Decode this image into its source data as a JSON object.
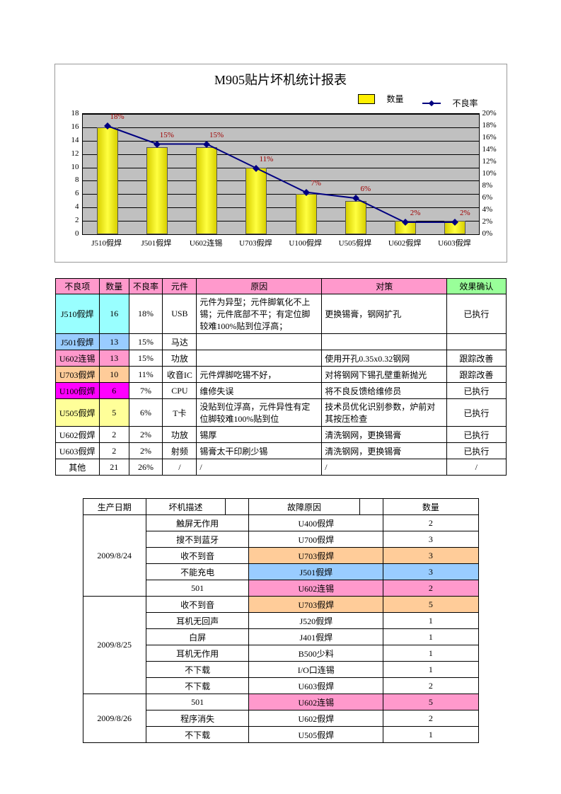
{
  "chart": {
    "title": "M905贴片坏机统计报表",
    "legend_bar": "数量",
    "legend_line": "不良率",
    "left_max": 18,
    "left_step": 2,
    "right_max": 20,
    "right_step": 2,
    "plot_bg": "#c0c0c0",
    "bar_color": "#fff000",
    "line_color": "#000080",
    "label_color": "#a00000",
    "categories": [
      "J510假焊",
      "J501假焊",
      "U602连锡",
      "U703假焊",
      "U100假焊",
      "U505假焊",
      "U602假焊",
      "U603假焊"
    ],
    "bar_values": [
      16,
      13,
      13,
      10,
      6,
      5,
      2,
      2
    ],
    "rate_values": [
      18,
      15,
      15,
      11,
      7,
      6,
      2,
      2
    ],
    "rate_labels": [
      "18%",
      "15%",
      "15%",
      "11%",
      "7%",
      "6%",
      "2%",
      "2%"
    ]
  },
  "colors": {
    "hdr_pink": "#ff99cc",
    "hdr_green": "#99ff99",
    "cyan": "#99ffff",
    "blue": "#99ccff",
    "pink": "#ff99cc",
    "orange": "#ffcc99",
    "magenta": "#ff00ff",
    "yellow": "#ffff99"
  },
  "t1": {
    "headers": [
      "不良项",
      "数量",
      "不良率",
      "元件",
      "原因",
      "对策",
      "效果确认"
    ],
    "rows": [
      {
        "cell_bg": "cyan",
        "item": "J510假焊",
        "qty": "16",
        "rate": "18%",
        "part": "USB",
        "reason": "元件为异型；元件脚氧化不上锡；元件底部不平；有定位脚较难100%贴到位浮高；",
        "measure": "更换锡膏，钢网扩孔",
        "confirm": "已执行"
      },
      {
        "cell_bg": "blue",
        "item": "J501假焊",
        "qty": "13",
        "rate": "15%",
        "part": "马达",
        "reason": "",
        "measure": "",
        "confirm": ""
      },
      {
        "cell_bg": "pink",
        "item": "U602连锡",
        "qty": "13",
        "rate": "15%",
        "part": "功放",
        "reason": "",
        "measure": "使用开孔0.35x0.32钢网",
        "confirm": "跟踪改善"
      },
      {
        "cell_bg": "orange",
        "item": "U703假焊",
        "qty": "10",
        "rate": "11%",
        "part": "收音IC",
        "reason": "元件焊脚吃锡不好，",
        "measure": "对将钢网下锡孔壁重新抛光",
        "confirm": "跟踪改善"
      },
      {
        "cell_bg": "magenta",
        "item": "U100假焊",
        "qty": "6",
        "rate": "7%",
        "part": "CPU",
        "reason": "维修失误",
        "measure": "将不良反馈给维修员",
        "confirm": "已执行"
      },
      {
        "cell_bg": "yellow",
        "item": "U505假焊",
        "qty": "5",
        "rate": "6%",
        "part": "T卡",
        "reason": "没贴到位浮高，元件异性有定位脚较难100%贴到位",
        "measure": "技术员优化识别参数，炉前对其按压检查",
        "confirm": "已执行"
      },
      {
        "cell_bg": "",
        "item": "U602假焊",
        "qty": "2",
        "rate": "2%",
        "part": "功放",
        "reason": "锡厚",
        "measure": "清洗钢网，更换锡膏",
        "confirm": "已执行"
      },
      {
        "cell_bg": "",
        "item": "U603假焊",
        "qty": "2",
        "rate": "2%",
        "part": "射频",
        "reason": "锡膏太干印刷少锡",
        "measure": "清洗钢网，更换锡膏",
        "confirm": "已执行"
      },
      {
        "cell_bg": "",
        "item": "其他",
        "qty": "21",
        "rate": "26%",
        "part": "/",
        "reason": "/",
        "measure": "/",
        "confirm": "/"
      }
    ]
  },
  "t2": {
    "headers": [
      "生产日期",
      "坏机描述",
      "",
      "故障原因",
      "",
      "数量"
    ],
    "groups": [
      {
        "date": "2009/8/24",
        "rows": [
          {
            "desc": "触屏无作用",
            "cause": "U400假焊",
            "bg": "",
            "qty": "2"
          },
          {
            "desc": "搜不到蓝牙",
            "cause": "U700假焊",
            "bg": "",
            "qty": "3"
          },
          {
            "desc": "收不到音",
            "cause": "U703假焊",
            "bg": "orange",
            "qty": "3"
          },
          {
            "desc": "不能充电",
            "cause": "J501假焊",
            "bg": "blue",
            "qty": "3"
          },
          {
            "desc": "501",
            "cause": "U602连锡",
            "bg": "pink",
            "qty": "2"
          }
        ]
      },
      {
        "date": "2009/8/25",
        "rows": [
          {
            "desc": "收不到音",
            "cause": "U703假焊",
            "bg": "orange",
            "qty": "5"
          },
          {
            "desc": "耳机无回声",
            "cause": "J520假焊",
            "bg": "",
            "qty": "1"
          },
          {
            "desc": "白屏",
            "cause": "J401假焊",
            "bg": "",
            "qty": "1"
          },
          {
            "desc": "耳机无作用",
            "cause": "B500少料",
            "bg": "",
            "qty": "1"
          },
          {
            "desc": "不下载",
            "cause": "I/O口连锡",
            "bg": "",
            "qty": "1"
          },
          {
            "desc": "不下载",
            "cause": "U603假焊",
            "bg": "",
            "qty": "2"
          }
        ]
      },
      {
        "date": "2009/8/26",
        "rows": [
          {
            "desc": "501",
            "cause": "U602连锡",
            "bg": "pink",
            "qty": "5"
          },
          {
            "desc": "程序消失",
            "cause": "U602假焊",
            "bg": "",
            "qty": "2"
          },
          {
            "desc": "不下载",
            "cause": "U505假焊",
            "bg": "",
            "qty": "1"
          }
        ]
      }
    ]
  }
}
